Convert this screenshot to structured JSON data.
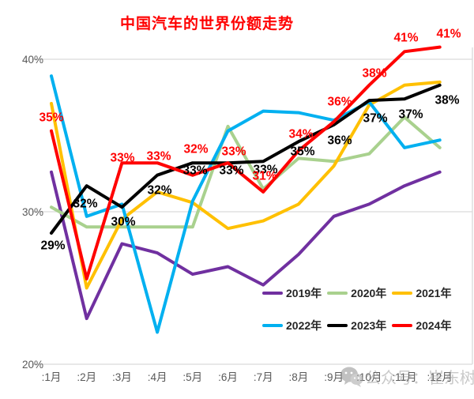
{
  "title": "中国汽车的世界份额走势",
  "watermark": {
    "icon": "wechat-icon",
    "text": "公众号：崔东树"
  },
  "chart_data": {
    "type": "line",
    "title": "中国汽车的世界份额走势",
    "categories": [
      ":1月",
      ":2月",
      ":3月",
      ":4月",
      ":5月",
      ":6月",
      ":7月",
      ":8月",
      ":9月",
      ":10月",
      ":11月",
      ":12月"
    ],
    "ylabel": "",
    "xlabel": "",
    "unit": "%",
    "ylim": [
      20,
      42
    ],
    "yticks": [
      20,
      30,
      40
    ],
    "ytick_labels": [
      "20%",
      "30%",
      "40%"
    ],
    "grid": true,
    "legend_position": "inside bottom-right, two rows",
    "series": [
      {
        "name": "2019年",
        "color": "#7030A0",
        "values": [
          32.6,
          23.0,
          27.9,
          27.3,
          25.9,
          26.4,
          25.2,
          27.2,
          29.7,
          30.5,
          31.7,
          32.6
        ],
        "labels": null
      },
      {
        "name": "2020年",
        "color": "#A9D18E",
        "values": [
          30.3,
          29.0,
          29.0,
          29.0,
          29.0,
          35.6,
          31.5,
          33.5,
          33.3,
          33.8,
          36.2,
          34.2
        ],
        "labels": null
      },
      {
        "name": "2021年",
        "color": "#FFC000",
        "values": [
          37.1,
          25.0,
          29.5,
          31.3,
          30.6,
          28.9,
          29.4,
          30.5,
          33.0,
          37.0,
          38.3,
          38.5
        ],
        "labels": null
      },
      {
        "name": "2022年",
        "color": "#00B0F0",
        "values": [
          38.9,
          29.7,
          30.5,
          22.1,
          30.7,
          35.3,
          36.6,
          36.5,
          36.0,
          37.2,
          34.2,
          34.7
        ],
        "labels": null
      },
      {
        "name": "2023年",
        "color": "#000000",
        "values": [
          28.6,
          31.7,
          30.3,
          32.4,
          33.2,
          33.2,
          33.3,
          34.6,
          35.7,
          37.3,
          37.4,
          38.3
        ],
        "labels": [
          "29%",
          "32%",
          "30%",
          "32%",
          "33%",
          "33%",
          "33%",
          "35%",
          "36%",
          "37%",
          "37%",
          "38%"
        ]
      },
      {
        "name": "2024年",
        "color": "#FF0000",
        "values": [
          35.3,
          25.6,
          33.2,
          33.2,
          32.4,
          33.2,
          31.3,
          34.0,
          35.9,
          38.3,
          40.5,
          40.8
        ],
        "labels": [
          "35%",
          null,
          "33%",
          "33%",
          "32%",
          "33%",
          "31%",
          "34%",
          "36%",
          "38%",
          "41%",
          "41%"
        ]
      }
    ]
  }
}
